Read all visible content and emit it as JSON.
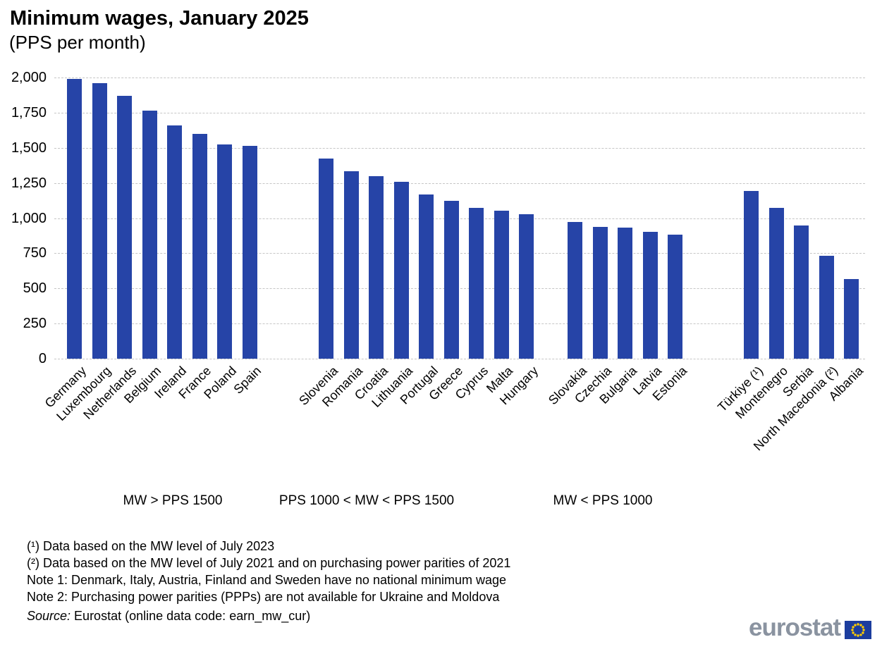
{
  "title": "Minimum wages, January 2025",
  "subtitle": "(PPS per month)",
  "chart_data": {
    "type": "bar",
    "title": "Minimum wages, January 2025",
    "subtitle": "(PPS per month)",
    "unit": "PPS per month",
    "ylim": [
      0,
      2000
    ],
    "ytick_step": 250,
    "ytick_labels": [
      "0",
      "250",
      "500",
      "750",
      "1,000",
      "1,250",
      "1,500",
      "1,750",
      "2,000"
    ],
    "grid": "horizontal dashed",
    "legend": "none",
    "bar_color": "#2644a7",
    "groups": [
      {
        "label": "MW > PPS 1500",
        "categories": [
          "Germany",
          "Luxembourg",
          "Netherlands",
          "Belgium",
          "Ireland",
          "France",
          "Poland",
          "Spain"
        ],
        "values": [
          1990,
          1960,
          1870,
          1765,
          1660,
          1600,
          1525,
          1515
        ]
      },
      {
        "label": "PPS 1000 < MW < PPS 1500",
        "categories": [
          "Slovenia",
          "Romania",
          "Croatia",
          "Lithuania",
          "Portugal",
          "Greece",
          "Cyprus",
          "Malta",
          "Hungary"
        ],
        "values": [
          1425,
          1335,
          1300,
          1260,
          1170,
          1125,
          1075,
          1055,
          1030
        ]
      },
      {
        "label": "MW < PPS 1000",
        "categories": [
          "Slovakia",
          "Czechia",
          "Bulgaria",
          "Latvia",
          "Estonia"
        ],
        "values": [
          970,
          935,
          930,
          900,
          880
        ]
      },
      {
        "label": "",
        "categories": [
          "Türkiye (¹)",
          "Montenegro",
          "Serbia",
          "North Macedonia (²)",
          "Albania"
        ],
        "values": [
          1195,
          1075,
          945,
          730,
          565
        ]
      }
    ]
  },
  "footnotes": [
    "(¹) Data based on the MW level of July 2023",
    "(²) Data based on the MW level of July 2021 and on purchasing power parities of 2021",
    "Note 1: Denmark, Italy, Austria, Finland and Sweden have no national minimum wage",
    "Note 2: Purchasing power parities (PPPs) are not available for Ukraine and Moldova"
  ],
  "source": {
    "prefix": "Source:",
    "text": " Eurostat (online data code: earn_mw_cur)"
  },
  "logo": {
    "text": "eurostat",
    "text_color": "#8a93a0",
    "flag_blue": "#1c3d9e",
    "star_yellow": "#ffcc00"
  }
}
